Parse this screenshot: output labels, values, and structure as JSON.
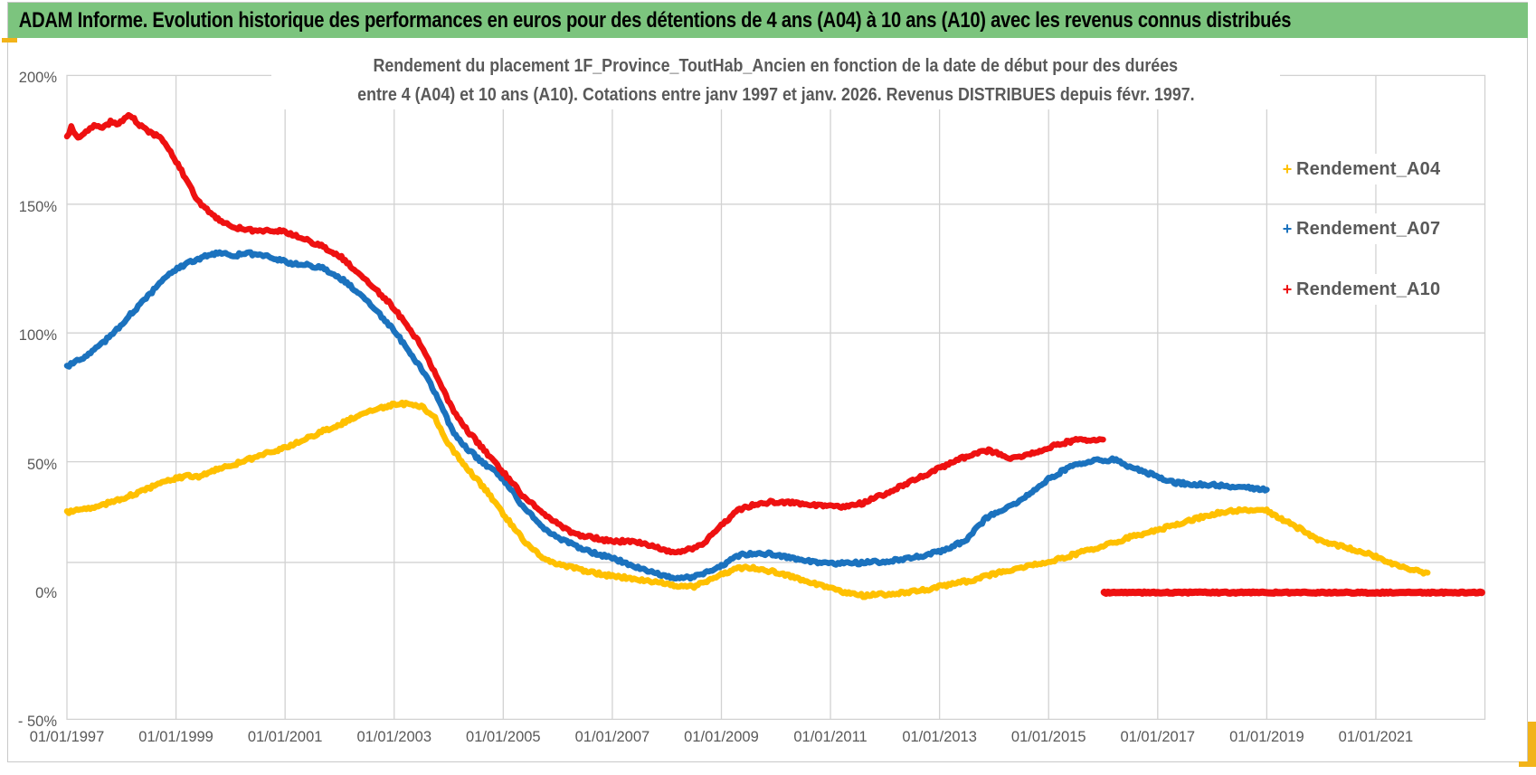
{
  "window": {
    "header": {
      "title": "ADAM Informe. Evolution historique des performances en euros pour des détentions de 4 ans (A04) à 10 ans (A10) avec les revenus connus distribués",
      "bg_color": "#7cc47e",
      "accent_color": "#f2b319"
    }
  },
  "chart_data": {
    "type": "scatter",
    "title_line1": "Rendement du placement 1F_Province_ToutHab_Ancien en fonction de la date de début pour des durées",
    "title_line2": "entre 4 (A04) et 10 ans (A10). Cotations entre janv 1997 et janv. 2026. Revenus DISTRIBUES depuis févr. 1997.",
    "grid": true,
    "gridline_color": "#d2d2d2",
    "text_color": "#595959",
    "xlim_years": [
      1997,
      2023
    ],
    "ylim_pct": [
      -50,
      200
    ],
    "extra_gridline_pct": 10.9,
    "x_axis": {
      "ticks": [
        {
          "label": "01/01/1997",
          "year": 1997
        },
        {
          "label": "01/01/1999",
          "year": 1999
        },
        {
          "label": "01/01/2001",
          "year": 2001
        },
        {
          "label": "01/01/2003",
          "year": 2003
        },
        {
          "label": "01/01/2005",
          "year": 2005
        },
        {
          "label": "01/01/2007",
          "year": 2007
        },
        {
          "label": "01/01/2009",
          "year": 2009
        },
        {
          "label": "01/01/2011",
          "year": 2011
        },
        {
          "label": "01/01/2013",
          "year": 2013
        },
        {
          "label": "01/01/2015",
          "year": 2015
        },
        {
          "label": "01/01/2017",
          "year": 2017
        },
        {
          "label": "01/01/2019",
          "year": 2019
        },
        {
          "label": "01/01/2021",
          "year": 2021
        }
      ]
    },
    "y_axis": {
      "ticks": [
        {
          "label": "200%",
          "value": 200
        },
        {
          "label": "150%",
          "value": 150
        },
        {
          "label": "100%",
          "value": 100
        },
        {
          "label": "50%",
          "value": 50
        },
        {
          "label": "0%",
          "value": 0
        },
        {
          "label": "- 50%",
          "value": -50
        }
      ]
    },
    "legend": {
      "position": "right",
      "marker": "+",
      "entries": [
        {
          "label": "Rendement_A04",
          "color": "#FFC000"
        },
        {
          "label": "Rendement_A07",
          "color": "#1B72BE"
        },
        {
          "label": "Rendement_A10",
          "color": "#EE1111"
        }
      ]
    },
    "series": [
      {
        "name": "Rendement_A04",
        "color": "#FFC000",
        "marker": "+",
        "points": [
          [
            1997.0,
            30.5
          ],
          [
            1997.25,
            31.5
          ],
          [
            1997.5,
            32
          ],
          [
            1997.75,
            34
          ],
          [
            1998.0,
            35.5
          ],
          [
            1998.3,
            38
          ],
          [
            1998.6,
            40.5
          ],
          [
            1999.0,
            43.5
          ],
          [
            1999.2,
            44.5
          ],
          [
            1999.45,
            44.3
          ],
          [
            1999.7,
            46.5
          ],
          [
            2000.0,
            48.5
          ],
          [
            2000.35,
            51
          ],
          [
            2000.7,
            53.5
          ],
          [
            2001.0,
            55.5
          ],
          [
            2001.35,
            58.5
          ],
          [
            2001.7,
            62
          ],
          [
            2002.0,
            64.5
          ],
          [
            2002.35,
            68
          ],
          [
            2002.7,
            70.5
          ],
          [
            2003.0,
            72.3
          ],
          [
            2003.25,
            72.5
          ],
          [
            2003.5,
            71.5
          ],
          [
            2003.75,
            67
          ],
          [
            2003.95,
            58
          ],
          [
            2004.1,
            54
          ],
          [
            2004.4,
            46
          ],
          [
            2004.7,
            38.5
          ],
          [
            2005.0,
            29.8
          ],
          [
            2005.35,
            20
          ],
          [
            2005.72,
            12.6
          ],
          [
            2006.0,
            10.3
          ],
          [
            2006.3,
            8.7
          ],
          [
            2006.65,
            7
          ],
          [
            2007.0,
            5.6
          ],
          [
            2007.4,
            4.6
          ],
          [
            2007.9,
            3
          ],
          [
            2008.2,
            1.8
          ],
          [
            2008.5,
            1.5
          ],
          [
            2008.8,
            4
          ],
          [
            2009.0,
            6.5
          ],
          [
            2009.3,
            8.5
          ],
          [
            2009.55,
            9
          ],
          [
            2009.9,
            7.5
          ],
          [
            2010.2,
            6
          ],
          [
            2010.6,
            3.5
          ],
          [
            2011.0,
            1
          ],
          [
            2011.3,
            -1
          ],
          [
            2011.6,
            -2
          ],
          [
            2012.0,
            -1.5
          ],
          [
            2012.4,
            -0.8
          ],
          [
            2012.8,
            0.5
          ],
          [
            2013.2,
            2.5
          ],
          [
            2013.6,
            4
          ],
          [
            2013.85,
            5.6
          ],
          [
            2014.2,
            7.5
          ],
          [
            2014.5,
            9
          ],
          [
            2015.0,
            11
          ],
          [
            2015.5,
            14.2
          ],
          [
            2016.0,
            17.3
          ],
          [
            2016.6,
            21.4
          ],
          [
            2017.0,
            23.5
          ],
          [
            2017.5,
            26.7
          ],
          [
            2017.9,
            29.1
          ],
          [
            2018.2,
            30.5
          ],
          [
            2018.6,
            31.2
          ],
          [
            2019.0,
            31
          ],
          [
            2019.3,
            27.4
          ],
          [
            2019.6,
            24
          ],
          [
            2019.9,
            20
          ],
          [
            2020.2,
            18
          ],
          [
            2020.6,
            15.8
          ],
          [
            2020.9,
            14
          ],
          [
            2021.2,
            11
          ],
          [
            2021.5,
            8.8
          ],
          [
            2021.8,
            7.4
          ],
          [
            2021.95,
            6.5
          ]
        ]
      },
      {
        "name": "Rendement_A07",
        "color": "#1B72BE",
        "marker": "+",
        "points": [
          [
            1997.0,
            87
          ],
          [
            1997.15,
            89
          ],
          [
            1997.3,
            90
          ],
          [
            1997.5,
            93.5
          ],
          [
            1997.7,
            97
          ],
          [
            1997.95,
            102
          ],
          [
            1998.2,
            108
          ],
          [
            1998.45,
            113.5
          ],
          [
            1998.7,
            119
          ],
          [
            1998.95,
            124
          ],
          [
            1999.2,
            127
          ],
          [
            1999.5,
            129.5
          ],
          [
            1999.8,
            131
          ],
          [
            2000.05,
            130
          ],
          [
            2000.3,
            131
          ],
          [
            2000.6,
            130
          ],
          [
            2000.9,
            128.5
          ],
          [
            2001.1,
            127
          ],
          [
            2001.4,
            126.3
          ],
          [
            2001.65,
            125.5
          ],
          [
            2001.9,
            123
          ],
          [
            2002.1,
            120
          ],
          [
            2002.4,
            114.5
          ],
          [
            2002.7,
            108
          ],
          [
            2003.0,
            101
          ],
          [
            2003.3,
            92
          ],
          [
            2003.6,
            83
          ],
          [
            2003.9,
            70
          ],
          [
            2004.06,
            62.5
          ],
          [
            2004.3,
            56
          ],
          [
            2004.6,
            50
          ],
          [
            2004.9,
            45.5
          ],
          [
            2005.0,
            43.2
          ],
          [
            2005.35,
            33
          ],
          [
            2005.72,
            24.6
          ],
          [
            2006.0,
            20.5
          ],
          [
            2006.27,
            17.9
          ],
          [
            2006.6,
            15
          ],
          [
            2007.0,
            12.6
          ],
          [
            2007.4,
            9.5
          ],
          [
            2007.9,
            6
          ],
          [
            2008.2,
            4.8
          ],
          [
            2008.5,
            5.2
          ],
          [
            2008.8,
            7.5
          ],
          [
            2009.1,
            11
          ],
          [
            2009.35,
            13.8
          ],
          [
            2009.6,
            14.5
          ],
          [
            2009.9,
            14.2
          ],
          [
            2010.2,
            13
          ],
          [
            2010.5,
            12
          ],
          [
            2010.8,
            10.8
          ],
          [
            2011.1,
            10.5
          ],
          [
            2011.5,
            10.7
          ],
          [
            2012.0,
            11.2
          ],
          [
            2012.4,
            12.3
          ],
          [
            2012.8,
            14
          ],
          [
            2013.2,
            16.5
          ],
          [
            2013.5,
            20
          ],
          [
            2013.85,
            28
          ],
          [
            2014.2,
            32
          ],
          [
            2014.5,
            35
          ],
          [
            2014.8,
            40
          ],
          [
            2015.0,
            43.2
          ],
          [
            2015.3,
            47
          ],
          [
            2015.6,
            49.5
          ],
          [
            2015.9,
            50.6
          ],
          [
            2016.2,
            50.8
          ],
          [
            2016.45,
            48.5
          ],
          [
            2016.7,
            46.5
          ],
          [
            2017.0,
            44.2
          ],
          [
            2017.3,
            42
          ],
          [
            2017.6,
            41.3
          ],
          [
            2018.0,
            41
          ],
          [
            2018.3,
            40.3
          ],
          [
            2018.7,
            39.8
          ],
          [
            2019.0,
            39.2
          ]
        ]
      },
      {
        "name": "Rendement_A10",
        "color": "#EE1111",
        "marker": "+",
        "points": [
          [
            1997.0,
            176
          ],
          [
            1997.08,
            180
          ],
          [
            1997.2,
            175.5
          ],
          [
            1997.35,
            178
          ],
          [
            1997.5,
            180.5
          ],
          [
            1997.65,
            179.5
          ],
          [
            1997.8,
            182
          ],
          [
            1997.95,
            181
          ],
          [
            1998.13,
            185
          ],
          [
            1998.3,
            181.5
          ],
          [
            1998.5,
            178
          ],
          [
            1998.7,
            176
          ],
          [
            1998.9,
            170
          ],
          [
            1999.1,
            163
          ],
          [
            1999.25,
            157
          ],
          [
            1999.4,
            151.5
          ],
          [
            1999.6,
            147
          ],
          [
            1999.8,
            143.5
          ],
          [
            2000.0,
            141.5
          ],
          [
            2000.3,
            140
          ],
          [
            2000.6,
            139.5
          ],
          [
            2000.9,
            139.8
          ],
          [
            2001.1,
            138.5
          ],
          [
            2001.4,
            136
          ],
          [
            2001.7,
            133.5
          ],
          [
            2002.0,
            130
          ],
          [
            2002.3,
            124
          ],
          [
            2002.6,
            118
          ],
          [
            2002.9,
            112
          ],
          [
            2003.2,
            104
          ],
          [
            2003.5,
            95
          ],
          [
            2003.8,
            82
          ],
          [
            2004.06,
            71
          ],
          [
            2004.35,
            62
          ],
          [
            2004.65,
            54.5
          ],
          [
            2005.0,
            46
          ],
          [
            2005.35,
            37
          ],
          [
            2005.72,
            30.2
          ],
          [
            2006.0,
            26
          ],
          [
            2006.27,
            22.1
          ],
          [
            2006.6,
            20.8
          ],
          [
            2007.0,
            19
          ],
          [
            2007.4,
            19.3
          ],
          [
            2007.7,
            17.5
          ],
          [
            2008.0,
            15.4
          ],
          [
            2008.25,
            15
          ],
          [
            2008.65,
            17.5
          ],
          [
            2009.0,
            25.6
          ],
          [
            2009.3,
            31
          ],
          [
            2009.6,
            33.5
          ],
          [
            2009.9,
            34.3
          ],
          [
            2010.3,
            34.2
          ],
          [
            2010.7,
            33.3
          ],
          [
            2011.0,
            32.8
          ],
          [
            2011.3,
            32.5
          ],
          [
            2011.6,
            34
          ],
          [
            2012.0,
            37.5
          ],
          [
            2012.4,
            41.5
          ],
          [
            2012.8,
            45.5
          ],
          [
            2013.2,
            49.5
          ],
          [
            2013.6,
            53
          ],
          [
            2013.9,
            54.3
          ],
          [
            2014.3,
            51.5
          ],
          [
            2014.6,
            52.5
          ],
          [
            2014.9,
            54.5
          ],
          [
            2015.2,
            57
          ],
          [
            2015.5,
            58.3
          ],
          [
            2015.8,
            58.6
          ],
          [
            2016.0,
            58.2
          ]
        ],
        "zero_segment": [
          [
            2016.02,
            -0.8
          ],
          [
            2022.94,
            -0.8
          ]
        ]
      }
    ]
  }
}
